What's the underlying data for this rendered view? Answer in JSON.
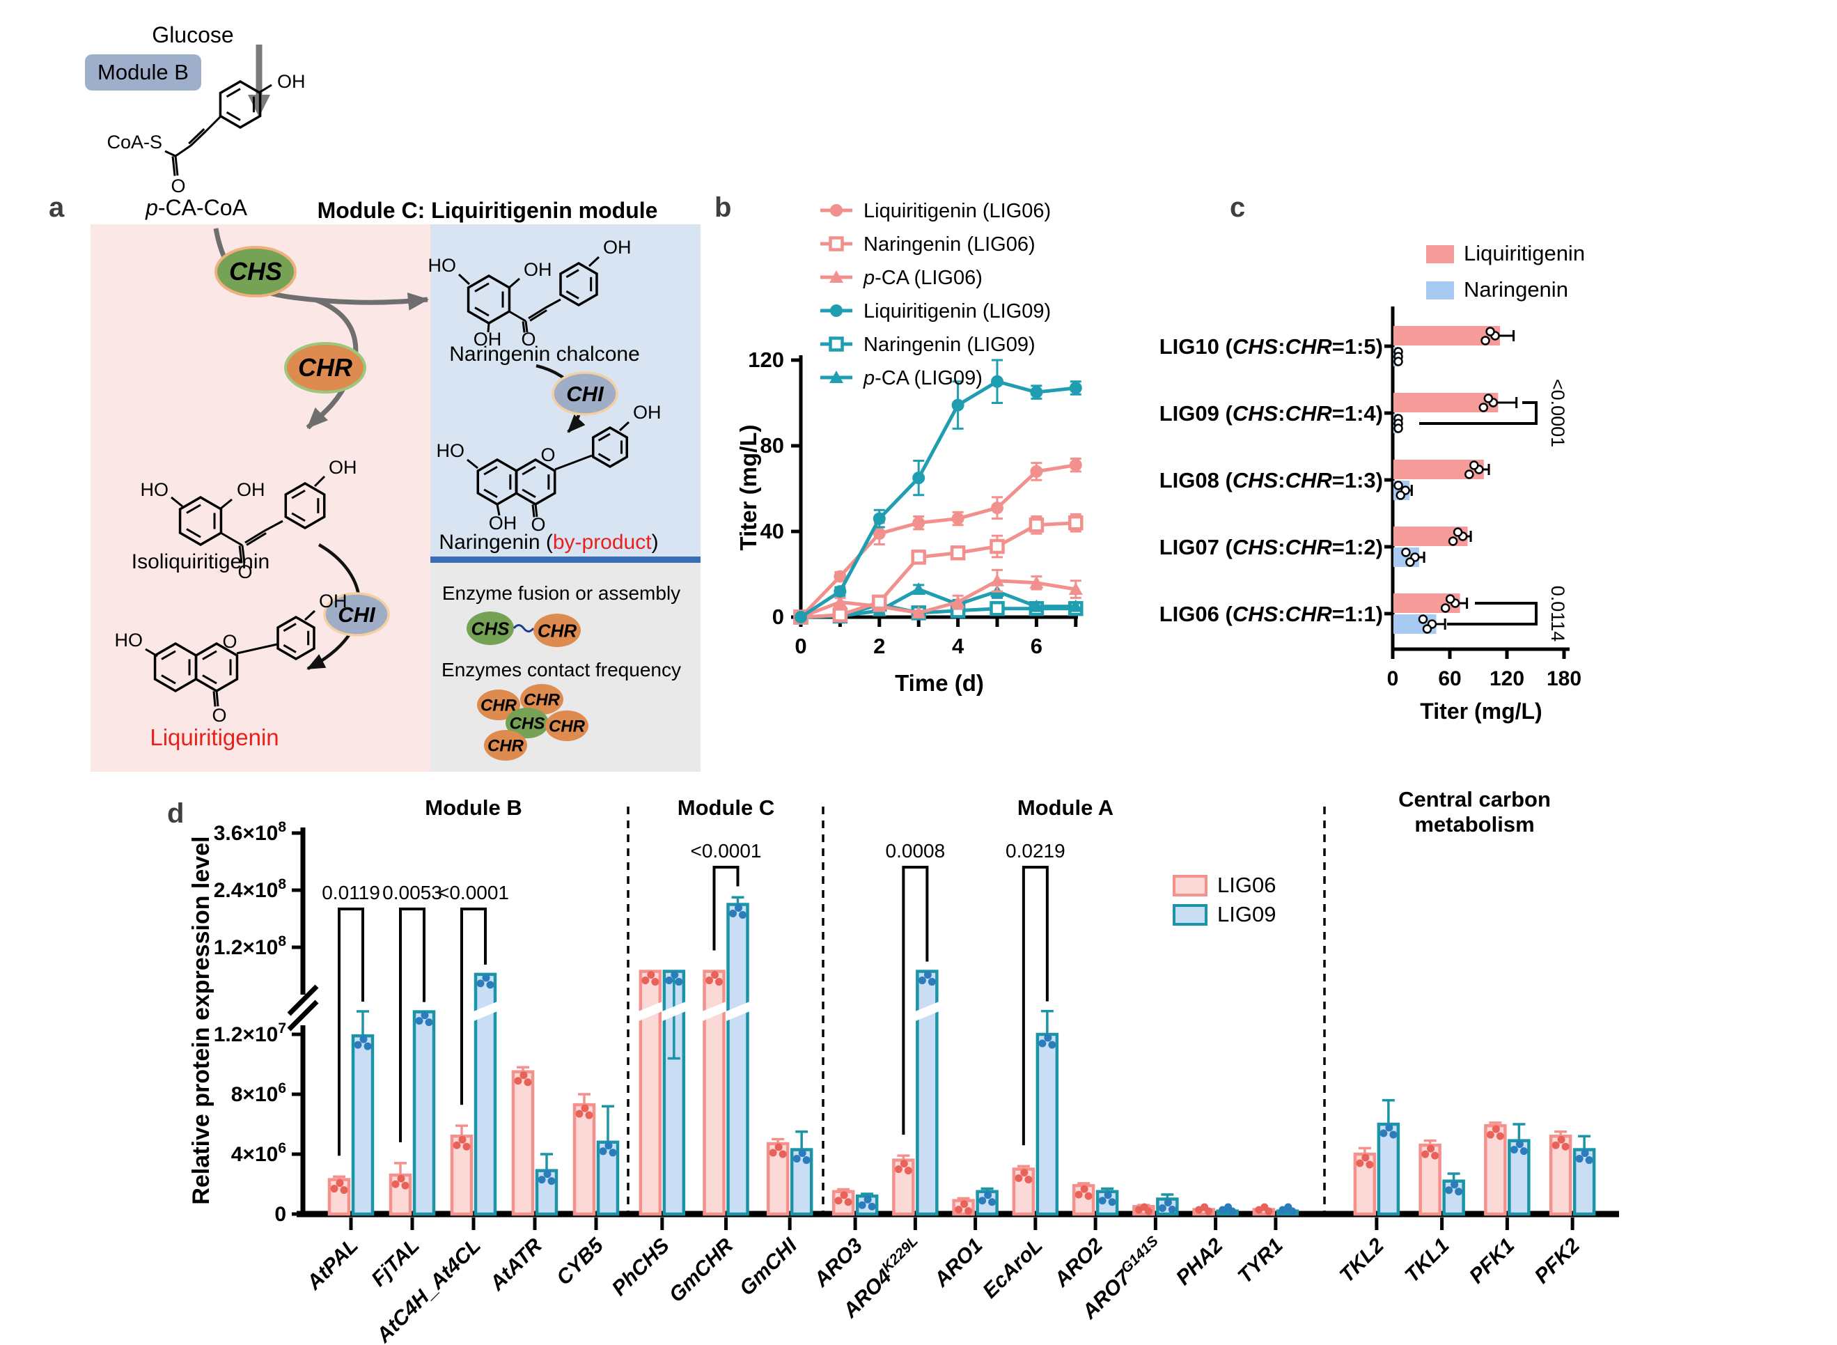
{
  "figure": {
    "panel_labels": {
      "a": "a",
      "b": "b",
      "c": "c",
      "d": "d"
    }
  },
  "panel_a": {
    "glucose": "Glucose",
    "module_b": "Module B",
    "title": "Module C: Liquiritigenin module",
    "pca_coa": {
      "italic": "p",
      "rest": "-CA-CoA"
    },
    "atoms": {
      "oh": "OH",
      "ho": "HO",
      "o": "O",
      "coas": "CoA-S"
    },
    "enzymes": {
      "chs": "CHS",
      "chr": "CHR",
      "chi": "CHI"
    },
    "captions": {
      "naringenin_chalcone": "Naringenin chalcone",
      "isoliquiritigenin": "Isoliquiritigenin",
      "liquiritigenin": "Liquiritigenin",
      "naringenin_pre": "Naringenin (",
      "byproduct": "by-product",
      "naringenin_post": ")"
    },
    "grey_box": {
      "fusion": "Enzyme fusion or assembly",
      "contact": "Enzymes contact frequency"
    },
    "colors": {
      "pink_bg": "#fbe7e5",
      "blue_bg": "#d9e4f2",
      "grey_bg": "#e9e9e9",
      "divider": "#3a6bb5",
      "chip": "#9fafcb",
      "chs_fill": "#76a256",
      "chs_stroke": "#edb07e",
      "chr_fill": "#de8b50",
      "chr_stroke": "#9cc87e",
      "chi_fill": "#9faec6",
      "chi_stroke": "#f3cfa4",
      "arrow": "#6e6e6e",
      "red": "#e8201c"
    }
  },
  "chart_data": [
    {
      "panel": "b",
      "type": "line",
      "xlabel": "Time (d)",
      "ylabel": "Titer (mg/L)",
      "xlim": [
        0,
        7
      ],
      "ylim": [
        0,
        120
      ],
      "xticks": [
        0,
        2,
        4,
        6
      ],
      "xminor": [
        0,
        1,
        2,
        3,
        4,
        5,
        6,
        7
      ],
      "yticks": [
        0,
        40,
        80,
        120
      ],
      "x": [
        0,
        1,
        2,
        3,
        4,
        5,
        6,
        7
      ],
      "series": [
        {
          "name": "Liquiritigenin (LIG06)",
          "italic_p": false,
          "color": "#f2908d",
          "marker": "circle",
          "values": [
            0,
            19,
            39,
            44,
            46,
            51,
            68,
            71
          ],
          "errors": [
            1,
            2,
            5,
            3,
            3,
            5,
            4,
            3
          ]
        },
        {
          "name": "Naringenin (LIG06)",
          "italic_p": false,
          "color": "#f2908d",
          "marker": "square-open",
          "values": [
            0,
            1,
            7,
            28,
            30,
            33,
            43,
            44
          ],
          "errors": [
            0.5,
            1,
            3,
            3,
            2,
            5,
            4,
            4
          ]
        },
        {
          "name": "p-CA (LIG06)",
          "italic_p": true,
          "color": "#f2908d",
          "marker": "triangle",
          "values": [
            0,
            7,
            5,
            2,
            7,
            17,
            16,
            13
          ],
          "errors": [
            0.5,
            2,
            2,
            1,
            3,
            5,
            3,
            4
          ]
        },
        {
          "name": "Liquiritigenin (LIG09)",
          "italic_p": false,
          "color": "#1e9eb0",
          "marker": "circle",
          "values": [
            0,
            12,
            46,
            65,
            99,
            110,
            105,
            107
          ],
          "errors": [
            0.5,
            2,
            4,
            8,
            11,
            10,
            3,
            3
          ]
        },
        {
          "name": "Naringenin (LIG09)",
          "italic_p": false,
          "color": "#1e9eb0",
          "marker": "square-open",
          "values": [
            0,
            0.5,
            6,
            2,
            3,
            4,
            4,
            4
          ],
          "errors": [
            0.3,
            0.5,
            3,
            1,
            1,
            2,
            2,
            2
          ]
        },
        {
          "name": "p-CA (LIG09)",
          "italic_p": true,
          "color": "#1e9eb0",
          "marker": "triangle",
          "values": [
            0,
            0.5,
            3,
            13,
            6,
            12,
            5,
            5
          ],
          "errors": [
            0.3,
            0.5,
            1,
            2,
            2,
            3,
            2,
            2
          ]
        }
      ]
    },
    {
      "panel": "c",
      "type": "bar-horizontal",
      "xlabel": "Titer (mg/L)",
      "xticks": [
        0,
        60,
        120,
        180
      ],
      "xlim": [
        0,
        185
      ],
      "legend": [
        {
          "label": "Liquiritigenin",
          "color": "#f59c9b"
        },
        {
          "label": "Naringenin",
          "color": "#a7c9f2"
        }
      ],
      "label_genes": {
        "open": " (",
        "gene1": "CHS",
        "colon": ":",
        "gene2": "CHR"
      },
      "rows": [
        {
          "strain": "LIG10",
          "ratio_suffix": "=1:5)",
          "liquiritigenin": 112,
          "liq_err": 15,
          "naringenin": 5,
          "nar_err": 2
        },
        {
          "strain": "LIG09",
          "ratio_suffix": "=1:4)",
          "liquiritigenin": 110,
          "liq_err": 20,
          "naringenin": 5,
          "nar_err": 2
        },
        {
          "strain": "LIG08",
          "ratio_suffix": "=1:3)",
          "liquiritigenin": 95,
          "liq_err": 6,
          "naringenin": 17,
          "nar_err": 3
        },
        {
          "strain": "LIG07",
          "ratio_suffix": "=1:2)",
          "liquiritigenin": 78,
          "liq_err": 4,
          "naringenin": 27,
          "nar_err": 6
        },
        {
          "strain": "LIG06",
          "ratio_suffix": "=1:1)",
          "liquiritigenin": 70,
          "liq_err": 8,
          "naringenin": 45,
          "nar_err": 10
        }
      ],
      "significance": [
        {
          "row": "LIG09",
          "text": "<0.0001"
        },
        {
          "row": "LIG06",
          "text": "0.0114"
        }
      ]
    },
    {
      "panel": "d",
      "type": "grouped-bar",
      "ylabel": "Relative protein expression level",
      "y_ticks_lower": [
        {
          "label": "0",
          "value": 0
        },
        {
          "base": "4×10",
          "exp": "6",
          "value": 4000000.0
        },
        {
          "base": "8×10",
          "exp": "6",
          "value": 8000000.0
        },
        {
          "base": "1.2×10",
          "exp": "7",
          "value": 12000000.0
        }
      ],
      "y_ticks_upper": [
        {
          "base": "1.2×10",
          "exp": "8",
          "value": 120000000.0
        },
        {
          "base": "2.4×10",
          "exp": "8",
          "value": 240000000.0
        },
        {
          "base": "3.6×10",
          "exp": "8",
          "value": 360000000.0
        }
      ],
      "modules": [
        {
          "name": "Module B",
          "count": 5
        },
        {
          "name": "Module C",
          "count": 3
        },
        {
          "name": "Module A",
          "count": 8
        },
        {
          "name": "Central carbon",
          "name2": "metabolism",
          "count": 4
        }
      ],
      "legend": [
        {
          "label": "LIG06",
          "fill": "#fbd9d7",
          "stroke": "#f4918c"
        },
        {
          "label": "LIG09",
          "fill": "#c9def5",
          "stroke": "#1b94a8"
        }
      ],
      "genes": [
        {
          "label": "AtPAL"
        },
        {
          "label": "FjTAL"
        },
        {
          "label": "AtC4H_At4CL"
        },
        {
          "label": "AtATR"
        },
        {
          "label": "CYB5"
        },
        {
          "label": "PhCHS"
        },
        {
          "label": "GmCHR"
        },
        {
          "label": "GmCHI"
        },
        {
          "label": "ARO3"
        },
        {
          "label": "ARO4",
          "sup": "K229L"
        },
        {
          "label": "ARO1"
        },
        {
          "label": "EcAroL"
        },
        {
          "label": "ARO2"
        },
        {
          "label": "ARO7",
          "sup": "G141S"
        },
        {
          "label": "PHA2"
        },
        {
          "label": "TYR1"
        },
        {
          "label": "TKL2"
        },
        {
          "label": "TKL1"
        },
        {
          "label": "PFK1"
        },
        {
          "label": "PFK2"
        }
      ],
      "lig06": {
        "values": [
          2300000.0,
          2600000.0,
          5200000.0,
          9500000.0,
          7300000.0,
          80000000.0,
          80000000.0,
          4700000.0,
          1500000.0,
          3600000.0,
          900000.0,
          3000000.0,
          1900000.0,
          500000.0,
          300000.0,
          300000.0,
          4000000.0,
          4600000.0,
          5900000.0,
          5200000.0
        ],
        "errors": [
          200000.0,
          800000.0,
          700000.0,
          300000.0,
          700000.0,
          0,
          0,
          300000.0,
          150000.0,
          300000.0,
          150000.0,
          200000.0,
          150000.0,
          100000.0,
          50000.0,
          50000.0,
          400000.0,
          300000.0,
          200000.0,
          300000.0
        ]
      },
      "lig09": {
        "values": [
          11900000.0,
          12800000.0,
          75000000.0,
          2900000.0,
          4800000.0,
          80000000.0,
          210000000.0,
          4300000.0,
          1200000.0,
          80000000.0,
          1500000.0,
          12000000.0,
          1500000.0,
          1000000.0,
          200000.0,
          200000.0,
          6000000.0,
          2200000.0,
          4900000.0,
          4300000.0
        ],
        "errors": [
          1600000.0,
          600000.0,
          0,
          1100000.0,
          2400000.0,
          0,
          15000000.0,
          1200000.0,
          150000.0,
          0,
          200000.0,
          2000000.0,
          200000.0,
          300000.0,
          50000.0,
          50000.0,
          1600000.0,
          500000.0,
          1100000.0,
          900000.0
        ]
      },
      "pvalues": [
        {
          "gene_index": 0,
          "text": "0.0119"
        },
        {
          "gene_index": 1,
          "text": "0.0053"
        },
        {
          "gene_index": 2,
          "text": "<0.0001"
        },
        {
          "gene_index": 6,
          "text": "<0.0001"
        },
        {
          "gene_index": 9,
          "text": "0.0008"
        },
        {
          "gene_index": 11,
          "text": "0.0219"
        }
      ]
    }
  ]
}
